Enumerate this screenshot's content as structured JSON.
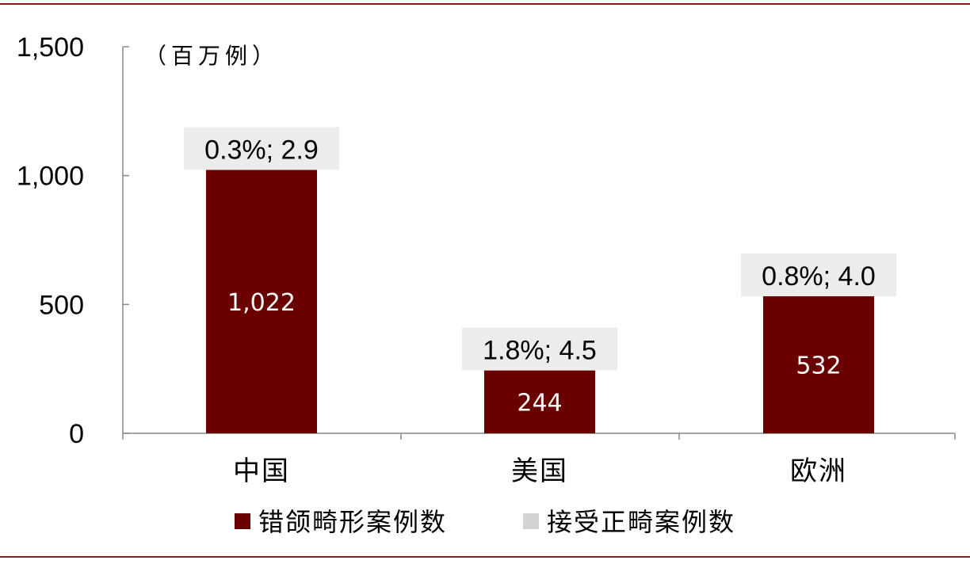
{
  "chart_data": {
    "type": "bar",
    "unit_label": "（百万例）",
    "categories": [
      "中国",
      "美国",
      "欧洲"
    ],
    "series": [
      {
        "name": "错颌畸形案例数",
        "values": [
          1022,
          244,
          532
        ],
        "value_labels": [
          "1,022",
          "244",
          "532"
        ],
        "color": "#6b0000"
      },
      {
        "name": "接受正畸案例数",
        "values": [
          2.9,
          4.5,
          4.0
        ],
        "color": "#d3d3d3"
      }
    ],
    "top_labels": [
      "0.3%; 2.9",
      "1.8%; 4.5",
      "0.8%; 4.0"
    ],
    "ylim": [
      0,
      1500
    ],
    "yticks": [
      0,
      500,
      1000,
      1500
    ],
    "ytick_labels": [
      "0",
      "500",
      "1,000",
      "1,500"
    ],
    "legend_position": "bottom",
    "grid": false
  },
  "colors": {
    "frame": "#8b1a1a",
    "bar": "#6b0000",
    "label_box": "#ececec",
    "axis": "#888888"
  }
}
